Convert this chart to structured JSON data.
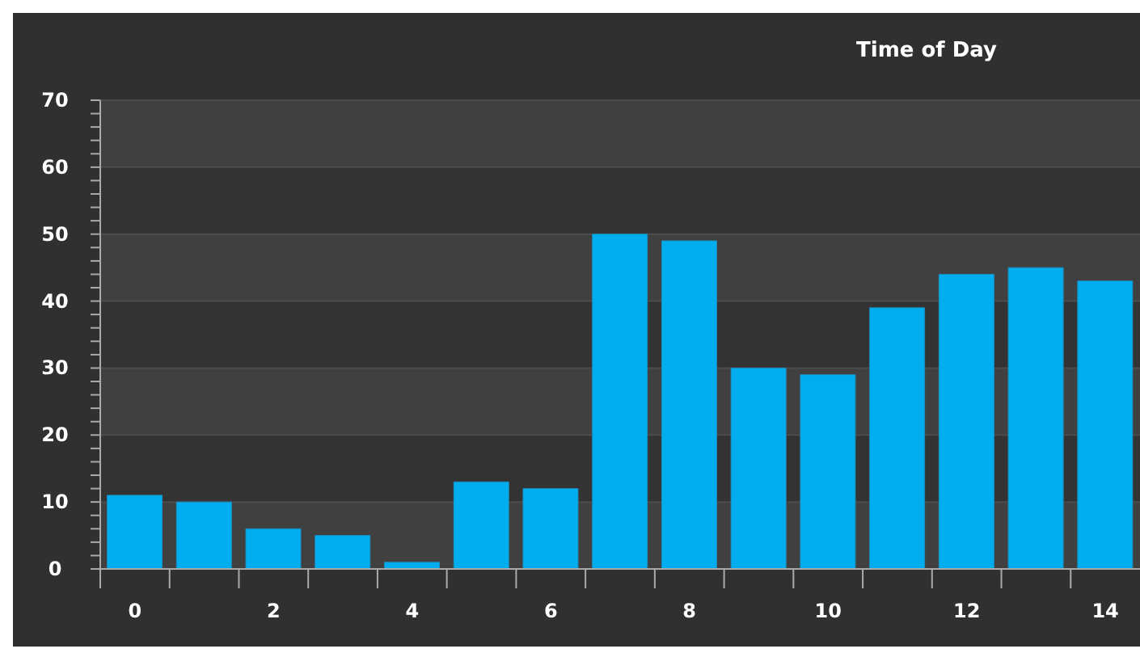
{
  "chart_data": {
    "type": "bar",
    "title": "Time of Day",
    "categories": [
      "0",
      null,
      "2",
      null,
      "4",
      null,
      "6",
      null,
      "8",
      null,
      "10",
      null,
      "12",
      null,
      "14"
    ],
    "values": [
      11,
      10,
      6,
      5,
      1,
      13,
      12,
      50,
      49,
      30,
      29,
      39,
      44,
      45,
      43
    ],
    "color": "#00aeef",
    "ylim": [
      0,
      70
    ],
    "yticks": [
      0,
      {
        "value": 2,
        "label": null
      },
      {
        "value": 4,
        "label": null
      },
      {
        "value": 6,
        "label": null
      },
      {
        "value": 8,
        "label": null
      },
      10,
      {
        "value": 12,
        "label": null
      },
      {
        "value": 14,
        "label": null
      },
      {
        "value": 16,
        "label": null
      },
      {
        "value": 18,
        "label": null
      },
      20,
      {
        "value": 22,
        "label": null
      },
      {
        "value": 24,
        "label": null
      },
      {
        "value": 26,
        "label": null
      },
      {
        "value": 28,
        "label": null
      },
      30,
      {
        "value": 32,
        "label": null
      },
      {
        "value": 34,
        "label": null
      },
      {
        "value": 36,
        "label": null
      },
      {
        "value": 38,
        "label": null
      },
      40,
      {
        "value": 42,
        "label": null
      },
      {
        "value": 44,
        "label": null
      },
      {
        "value": 46,
        "label": null
      },
      {
        "value": 48,
        "label": null
      },
      50,
      {
        "value": 52,
        "label": null
      },
      {
        "value": 54,
        "label": null
      },
      {
        "value": 56,
        "label": null
      },
      {
        "value": 58,
        "label": null
      },
      60,
      {
        "value": 62,
        "label": null
      },
      {
        "value": 64,
        "label": null
      },
      {
        "value": 66,
        "label": null
      },
      {
        "value": 68,
        "label": null
      },
      70
    ],
    "grid": "y"
  }
}
